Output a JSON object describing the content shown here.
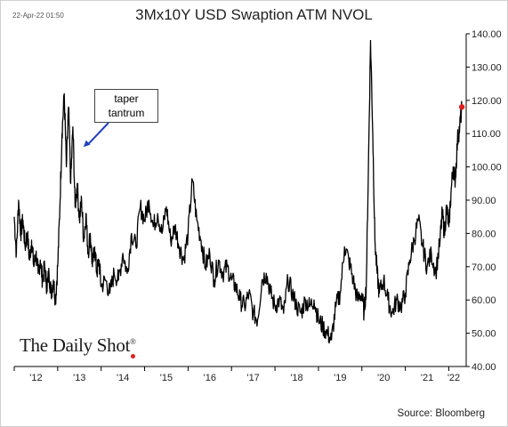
{
  "header": {
    "timestamp": "22-Apr-22 01:50",
    "title": "3Mx10Y USD Swaption ATM NVOL"
  },
  "footer": {
    "source": "Source: Bloomberg",
    "brand": "The Daily Shot",
    "brand_mark": "®"
  },
  "annotation": {
    "line1": "taper",
    "line2": "tantrum"
  },
  "colors": {
    "line": "#000000",
    "last_point": "#e02020",
    "arrow": "#1f3fbf"
  },
  "chart_data": {
    "type": "line",
    "title": "3Mx10Y USD Swaption ATM NVOL",
    "xlabel": "",
    "ylabel": "",
    "ylim": [
      40,
      140
    ],
    "xlim": [
      2012.0,
      2022.4
    ],
    "y_ticks": [
      "140.00",
      "130.00",
      "120.00",
      "110.00",
      "100.00",
      "90.00",
      "80.00",
      "70.00",
      "60.00",
      "50.00",
      "40.00"
    ],
    "x_ticks": [
      "'12",
      "'13",
      "'14",
      "'15",
      "'16",
      "'17",
      "'18",
      "'19",
      "'20",
      "'21",
      "'22"
    ],
    "grid": false,
    "series": [
      {
        "name": "",
        "x": [
          2012.0,
          2012.05,
          2012.1,
          2012.15,
          2012.2,
          2012.25,
          2012.3,
          2012.35,
          2012.4,
          2012.45,
          2012.5,
          2012.55,
          2012.6,
          2012.65,
          2012.7,
          2012.75,
          2012.8,
          2012.85,
          2012.9,
          2012.95,
          2013.0,
          2013.05,
          2013.1,
          2013.15,
          2013.2,
          2013.25,
          2013.3,
          2013.35,
          2013.4,
          2013.45,
          2013.5,
          2013.55,
          2013.6,
          2013.65,
          2013.7,
          2013.75,
          2013.8,
          2013.85,
          2013.9,
          2013.95,
          2014.0,
          2014.1,
          2014.2,
          2014.3,
          2014.4,
          2014.5,
          2014.6,
          2014.7,
          2014.8,
          2014.9,
          2015.0,
          2015.1,
          2015.2,
          2015.3,
          2015.4,
          2015.5,
          2015.6,
          2015.7,
          2015.8,
          2015.9,
          2016.0,
          2016.1,
          2016.2,
          2016.3,
          2016.4,
          2016.5,
          2016.6,
          2016.7,
          2016.8,
          2016.9,
          2017.0,
          2017.1,
          2017.2,
          2017.3,
          2017.4,
          2017.5,
          2017.6,
          2017.7,
          2017.8,
          2017.9,
          2018.0,
          2018.1,
          2018.2,
          2018.3,
          2018.4,
          2018.5,
          2018.6,
          2018.7,
          2018.8,
          2018.9,
          2019.0,
          2019.1,
          2019.2,
          2019.3,
          2019.4,
          2019.5,
          2019.6,
          2019.7,
          2019.8,
          2019.9,
          2020.0,
          2020.05,
          2020.1,
          2020.15,
          2020.2,
          2020.25,
          2020.3,
          2020.35,
          2020.4,
          2020.5,
          2020.6,
          2020.7,
          2020.8,
          2020.9,
          2021.0,
          2021.1,
          2021.2,
          2021.3,
          2021.4,
          2021.5,
          2021.6,
          2021.7,
          2021.8,
          2021.85,
          2021.9,
          2021.95,
          2022.0,
          2022.05,
          2022.1,
          2022.15,
          2022.2,
          2022.25,
          2022.3
        ],
        "values": [
          85,
          74,
          90,
          80,
          84,
          76,
          80,
          72,
          78,
          70,
          74,
          68,
          72,
          66,
          70,
          64,
          68,
          62,
          66,
          60,
          70,
          88,
          110,
          122,
          100,
          118,
          95,
          112,
          88,
          95,
          84,
          90,
          78,
          86,
          74,
          80,
          70,
          76,
          68,
          72,
          64,
          66,
          62,
          68,
          66,
          74,
          68,
          80,
          76,
          88,
          84,
          90,
          82,
          86,
          80,
          88,
          78,
          82,
          76,
          72,
          80,
          96,
          84,
          78,
          70,
          74,
          66,
          72,
          68,
          70,
          66,
          64,
          60,
          58,
          62,
          56,
          54,
          66,
          68,
          62,
          58,
          60,
          56,
          66,
          62,
          58,
          56,
          60,
          58,
          60,
          54,
          52,
          50,
          48,
          58,
          62,
          76,
          72,
          66,
          60,
          62,
          56,
          64,
          100,
          138,
          110,
          78,
          68,
          62,
          66,
          60,
          56,
          60,
          58,
          62,
          72,
          78,
          84,
          76,
          70,
          74,
          68,
          78,
          86,
          80,
          88,
          82,
          92,
          100,
          96,
          108,
          112,
          118
        ]
      }
    ]
  }
}
